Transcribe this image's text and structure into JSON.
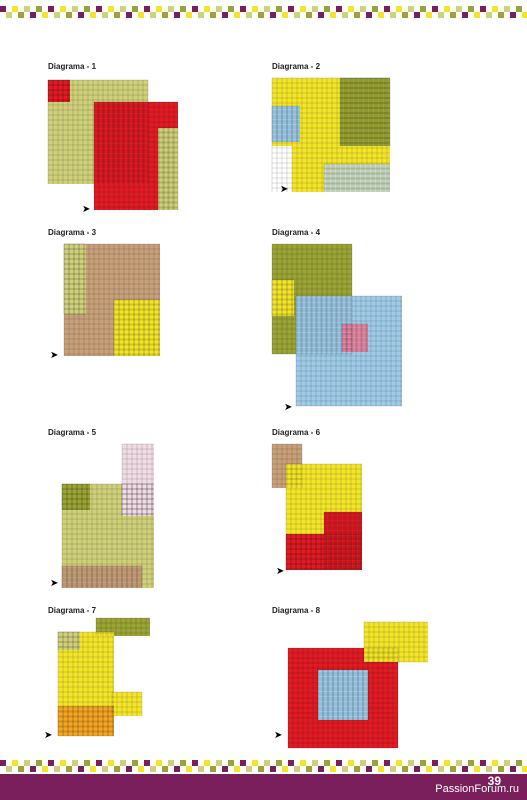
{
  "diagrams": [
    {
      "title": "Diagrama - 1"
    },
    {
      "title": "Diagrama - 2"
    },
    {
      "title": "Diagrama - 3"
    },
    {
      "title": "Diagrama - 4"
    },
    {
      "title": "Diagrama - 5"
    },
    {
      "title": "Diagrama - 6"
    },
    {
      "title": "Diagrama - 7"
    },
    {
      "title": "Diagrama - 8"
    }
  ],
  "page_number": "39",
  "watermark": "PassionForum.ru",
  "colors": {
    "red": "#e01b24",
    "yellow": "#f3e52a",
    "olive": "#9aa335",
    "khaki": "#cfd07a",
    "tan": "#c7a07a",
    "lightblue": "#9fcbe8",
    "pink": "#e88aa8",
    "lightpink": "#f1dbe5",
    "lightgreen": "#cfe0c6",
    "orange": "#f5a623",
    "accent_band": "#7a1f5c"
  }
}
